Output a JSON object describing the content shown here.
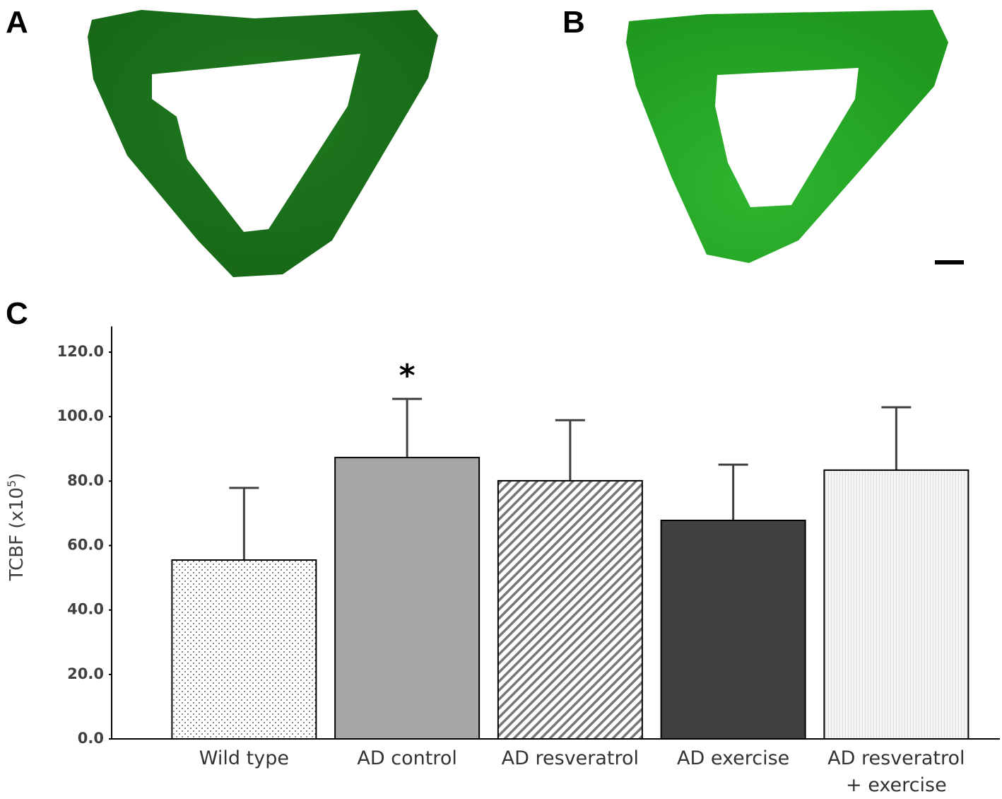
{
  "panels": {
    "a": "A",
    "b": "B",
    "c": "C"
  },
  "chart_data": {
    "type": "bar",
    "categories": [
      "Wild type",
      "AD control",
      "AD resveratrol",
      "AD exercise",
      "AD resveratrol\n+ exercise"
    ],
    "values": [
      55.5,
      87.3,
      80.1,
      67.8,
      83.4
    ],
    "errors": [
      22.4,
      18.2,
      18.8,
      17.3,
      19.5
    ],
    "colors": [
      "#ffffff",
      "#a6a6a6",
      "#ffffff",
      "#404040",
      "#f2f2f2"
    ],
    "patterns": [
      "dots",
      null,
      "diagonal",
      null,
      "vertical"
    ],
    "y_label": {
      "base": "TCBF  (x10",
      "exponent": "5",
      "suffix": ")"
    },
    "annotations": [
      {
        "text": "*",
        "category": 1
      }
    ],
    "ylim": [
      0,
      128
    ],
    "yticks": [
      {
        "value": 0,
        "label": "0.0"
      },
      {
        "value": 20,
        "label": "20.0"
      },
      {
        "value": 40,
        "label": "40.0"
      },
      {
        "value": 60,
        "label": "60.0"
      },
      {
        "value": 80,
        "label": "80.0"
      },
      {
        "value": 100,
        "label": "100.0"
      },
      {
        "value": 120,
        "label": "120.0"
      }
    ],
    "grid": false
  }
}
